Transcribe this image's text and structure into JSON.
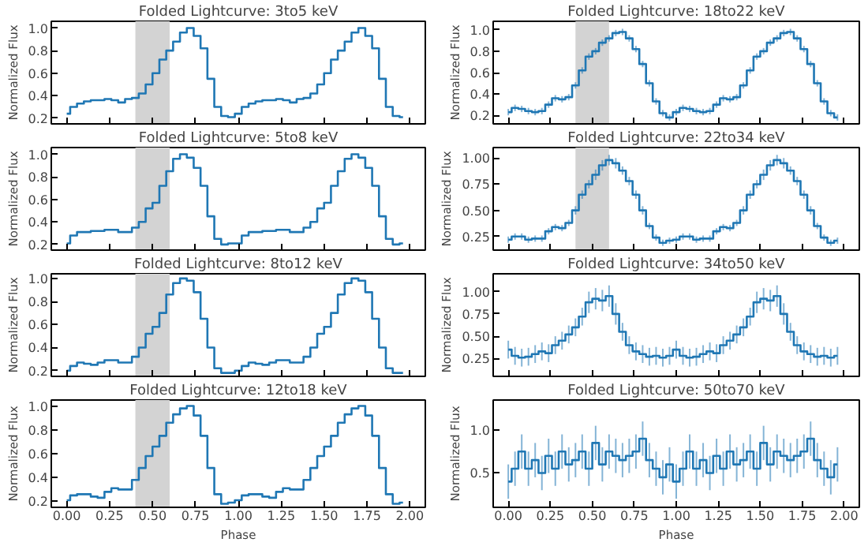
{
  "chart_data": [
    {
      "type": "step",
      "title": "Folded Lightcurve: 3to5 keV",
      "ylabel": "Normalized Flux",
      "xlim": [
        -0.09,
        2.09
      ],
      "xticks": [
        0.0,
        0.25,
        0.5,
        0.75,
        1.0,
        1.25,
        1.5,
        1.75,
        2.0
      ],
      "ylim": [
        0.15,
        1.06
      ],
      "yticks": [
        0.2,
        0.4,
        0.6,
        0.8,
        {
          "value": 1.0,
          "label": "1.0"
        }
      ],
      "tick_labels": "y",
      "x": [
        0,
        0.04,
        0.08,
        0.12,
        0.16,
        0.2,
        0.24,
        0.28,
        0.32,
        0.36,
        0.4,
        0.44,
        0.48,
        0.52,
        0.56,
        0.6,
        0.64,
        0.68,
        0.72,
        0.76,
        0.8,
        0.84,
        0.88,
        0.92,
        0.96,
        1.0,
        1.04,
        1.08,
        1.12,
        1.16,
        1.2,
        1.24,
        1.28,
        1.32,
        1.36,
        1.4,
        1.44,
        1.48,
        1.52,
        1.56,
        1.6,
        1.64,
        1.68,
        1.72,
        1.76,
        1.8,
        1.84,
        1.88,
        1.92,
        1.96
      ],
      "series": [
        {
          "color": "#1f77b4",
          "values": [
            0.24,
            0.3,
            0.33,
            0.35,
            0.36,
            0.36,
            0.37,
            0.36,
            0.34,
            0.37,
            0.38,
            0.42,
            0.5,
            0.6,
            0.72,
            0.8,
            0.88,
            0.96,
            1.0,
            0.93,
            0.82,
            0.55,
            0.3,
            0.22,
            0.21,
            0.24,
            0.3,
            0.33,
            0.35,
            0.36,
            0.36,
            0.37,
            0.36,
            0.34,
            0.37,
            0.38,
            0.42,
            0.5,
            0.6,
            0.72,
            0.8,
            0.88,
            0.96,
            1.0,
            0.93,
            0.82,
            0.55,
            0.3,
            0.22,
            0.21
          ]
        }
      ],
      "bands": [
        {
          "axis": "x",
          "from": 0.4,
          "to": 0.6,
          "color": "#d3d3d3"
        }
      ]
    },
    {
      "type": "step",
      "title": "Folded Lightcurve: 5to8 keV",
      "ylabel": "Normalized Flux",
      "xlim": [
        -0.09,
        2.09
      ],
      "xticks": [
        0.0,
        0.25,
        0.5,
        0.75,
        1.0,
        1.25,
        1.5,
        1.75,
        2.0
      ],
      "ylim": [
        0.15,
        1.06
      ],
      "yticks": [
        0.2,
        0.4,
        0.6,
        0.8,
        {
          "value": 1.0,
          "label": "1.0"
        }
      ],
      "tick_labels": "y",
      "x": [
        0,
        0.04,
        0.08,
        0.12,
        0.16,
        0.2,
        0.24,
        0.28,
        0.32,
        0.36,
        0.4,
        0.44,
        0.48,
        0.52,
        0.56,
        0.6,
        0.64,
        0.68,
        0.72,
        0.76,
        0.8,
        0.84,
        0.88,
        0.92,
        0.96,
        1.0,
        1.04,
        1.08,
        1.12,
        1.16,
        1.2,
        1.24,
        1.28,
        1.32,
        1.36,
        1.4,
        1.44,
        1.48,
        1.52,
        1.56,
        1.6,
        1.64,
        1.68,
        1.72,
        1.76,
        1.8,
        1.84,
        1.88,
        1.92,
        1.96
      ],
      "series": [
        {
          "color": "#1f77b4",
          "values": [
            0.21,
            0.28,
            0.31,
            0.31,
            0.32,
            0.32,
            0.33,
            0.33,
            0.31,
            0.31,
            0.35,
            0.4,
            0.52,
            0.57,
            0.72,
            0.85,
            0.96,
            1.0,
            0.97,
            0.88,
            0.72,
            0.45,
            0.25,
            0.2,
            0.21,
            0.21,
            0.28,
            0.31,
            0.31,
            0.32,
            0.32,
            0.33,
            0.33,
            0.31,
            0.31,
            0.35,
            0.4,
            0.52,
            0.57,
            0.72,
            0.85,
            0.96,
            1.0,
            0.97,
            0.88,
            0.72,
            0.45,
            0.25,
            0.2,
            0.21
          ]
        }
      ],
      "bands": [
        {
          "axis": "x",
          "from": 0.4,
          "to": 0.6,
          "color": "#d3d3d3"
        }
      ]
    },
    {
      "type": "step",
      "title": "Folded Lightcurve: 8to12 keV",
      "ylabel": "Normalized Flux",
      "xlim": [
        -0.09,
        2.09
      ],
      "xticks": [
        0.0,
        0.25,
        0.5,
        0.75,
        1.0,
        1.25,
        1.5,
        1.75,
        2.0
      ],
      "ylim": [
        0.15,
        1.04
      ],
      "yticks": [
        0.2,
        0.4,
        0.6,
        0.8,
        {
          "value": 1.0,
          "label": "1.0"
        }
      ],
      "tick_labels": "y",
      "x": [
        0,
        0.04,
        0.08,
        0.12,
        0.16,
        0.2,
        0.24,
        0.28,
        0.32,
        0.36,
        0.4,
        0.44,
        0.48,
        0.52,
        0.56,
        0.6,
        0.64,
        0.68,
        0.72,
        0.76,
        0.8,
        0.84,
        0.88,
        0.92,
        0.96,
        1.0,
        1.04,
        1.08,
        1.12,
        1.16,
        1.2,
        1.24,
        1.28,
        1.32,
        1.36,
        1.4,
        1.44,
        1.48,
        1.52,
        1.56,
        1.6,
        1.64,
        1.68,
        1.72,
        1.76,
        1.8,
        1.84,
        1.88,
        1.92,
        1.96
      ],
      "series": [
        {
          "color": "#1f77b4",
          "values": [
            0.2,
            0.24,
            0.27,
            0.26,
            0.25,
            0.27,
            0.29,
            0.29,
            0.27,
            0.27,
            0.32,
            0.4,
            0.52,
            0.58,
            0.7,
            0.86,
            0.96,
            1.0,
            0.98,
            0.88,
            0.65,
            0.4,
            0.22,
            0.18,
            0.18,
            0.2,
            0.24,
            0.27,
            0.26,
            0.25,
            0.27,
            0.29,
            0.29,
            0.27,
            0.27,
            0.32,
            0.4,
            0.52,
            0.58,
            0.7,
            0.86,
            0.96,
            1.0,
            0.98,
            0.88,
            0.65,
            0.4,
            0.22,
            0.18,
            0.18
          ]
        }
      ],
      "bands": [
        {
          "axis": "x",
          "from": 0.4,
          "to": 0.6,
          "color": "#d3d3d3"
        }
      ]
    },
    {
      "type": "step",
      "title": "Folded Lightcurve: 12to18 keV",
      "xlabel": "Phase",
      "ylabel": "Normalized Flux",
      "xlim": [
        -0.09,
        2.09
      ],
      "xticks": [
        {
          "value": 0.0,
          "label": "0.00"
        },
        {
          "value": 0.25,
          "label": "0.25"
        },
        {
          "value": 0.5,
          "label": "0.50"
        },
        {
          "value": 0.75,
          "label": "0.75"
        },
        {
          "value": 1.0,
          "label": "1.00"
        },
        {
          "value": 1.25,
          "label": "1.25"
        },
        {
          "value": 1.5,
          "label": "1.50"
        },
        {
          "value": 1.75,
          "label": "1.75"
        },
        {
          "value": 2.0,
          "label": "2.00"
        }
      ],
      "ylim": [
        0.15,
        1.05
      ],
      "yticks": [
        0.2,
        0.4,
        0.6,
        0.8,
        {
          "value": 1.0,
          "label": "1.0"
        }
      ],
      "x": [
        0,
        0.04,
        0.08,
        0.12,
        0.16,
        0.2,
        0.24,
        0.28,
        0.32,
        0.36,
        0.4,
        0.44,
        0.48,
        0.52,
        0.56,
        0.6,
        0.64,
        0.68,
        0.72,
        0.76,
        0.8,
        0.84,
        0.88,
        0.92,
        0.96,
        1.0,
        1.04,
        1.08,
        1.12,
        1.16,
        1.2,
        1.24,
        1.28,
        1.32,
        1.36,
        1.4,
        1.44,
        1.48,
        1.52,
        1.56,
        1.6,
        1.64,
        1.68,
        1.72,
        1.76,
        1.8,
        1.84,
        1.88,
        1.92,
        1.96
      ],
      "series": [
        {
          "color": "#1f77b4",
          "values": [
            0.21,
            0.25,
            0.26,
            0.26,
            0.24,
            0.23,
            0.28,
            0.31,
            0.3,
            0.3,
            0.38,
            0.48,
            0.58,
            0.66,
            0.75,
            0.86,
            0.93,
            0.98,
            1.0,
            0.92,
            0.75,
            0.48,
            0.26,
            0.18,
            0.19,
            0.21,
            0.25,
            0.26,
            0.26,
            0.24,
            0.23,
            0.28,
            0.31,
            0.3,
            0.3,
            0.38,
            0.48,
            0.58,
            0.66,
            0.75,
            0.86,
            0.93,
            0.98,
            1.0,
            0.92,
            0.75,
            0.48,
            0.26,
            0.18,
            0.19
          ]
        }
      ],
      "bands": [
        {
          "axis": "x",
          "from": 0.4,
          "to": 0.6,
          "color": "#d3d3d3"
        }
      ]
    },
    {
      "type": "step",
      "title": "Folded Lightcurve: 18to22 keV",
      "ylabel": "Normalized Flux",
      "xlim": [
        -0.09,
        2.09
      ],
      "xticks": [
        0.0,
        0.25,
        0.5,
        0.75,
        1.0,
        1.25,
        1.5,
        1.75,
        2.0
      ],
      "ylim": [
        0.12,
        1.08
      ],
      "yticks": [
        0.2,
        0.4,
        0.6,
        0.8,
        {
          "value": 1.0,
          "label": "1.0"
        }
      ],
      "tick_labels": "y",
      "x": [
        0,
        0.04,
        0.08,
        0.12,
        0.16,
        0.2,
        0.24,
        0.28,
        0.32,
        0.36,
        0.4,
        0.44,
        0.48,
        0.52,
        0.56,
        0.6,
        0.64,
        0.68,
        0.72,
        0.76,
        0.8,
        0.84,
        0.88,
        0.92,
        0.96,
        1.0,
        1.04,
        1.08,
        1.12,
        1.16,
        1.2,
        1.24,
        1.28,
        1.32,
        1.36,
        1.4,
        1.44,
        1.48,
        1.52,
        1.56,
        1.6,
        1.64,
        1.68,
        1.72,
        1.76,
        1.8,
        1.84,
        1.88,
        1.92,
        1.96
      ],
      "series": [
        {
          "color": "#1f77b4",
          "values": [
            0.23,
            0.27,
            0.26,
            0.24,
            0.23,
            0.24,
            0.3,
            0.36,
            0.35,
            0.37,
            0.48,
            0.62,
            0.75,
            0.8,
            0.88,
            0.92,
            0.97,
            0.98,
            0.92,
            0.82,
            0.68,
            0.5,
            0.33,
            0.22,
            0.18,
            0.23,
            0.27,
            0.26,
            0.24,
            0.23,
            0.24,
            0.3,
            0.36,
            0.35,
            0.37,
            0.48,
            0.62,
            0.75,
            0.8,
            0.88,
            0.92,
            0.97,
            0.98,
            0.92,
            0.82,
            0.68,
            0.5,
            0.33,
            0.22,
            0.18
          ],
          "errors": [
            0.03,
            0.03,
            0.03,
            0.03,
            0.03,
            0.03,
            0.03,
            0.03,
            0.03,
            0.03,
            0.03,
            0.03,
            0.03,
            0.03,
            0.03,
            0.03,
            0.03,
            0.03,
            0.03,
            0.03,
            0.03,
            0.03,
            0.03,
            0.03,
            0.03,
            0.03,
            0.03,
            0.03,
            0.03,
            0.03,
            0.03,
            0.03,
            0.03,
            0.03,
            0.03,
            0.03,
            0.03,
            0.03,
            0.03,
            0.03,
            0.03,
            0.03,
            0.03,
            0.03,
            0.03,
            0.03,
            0.03,
            0.03,
            0.03,
            0.03
          ]
        }
      ],
      "bands": [
        {
          "axis": "x",
          "from": 0.4,
          "to": 0.6,
          "color": "#d3d3d3"
        }
      ]
    },
    {
      "type": "step",
      "title": "Folded Lightcurve: 22to34 keV",
      "ylabel": "Normalized Flux",
      "xlim": [
        -0.09,
        2.09
      ],
      "xticks": [
        0.0,
        0.25,
        0.5,
        0.75,
        1.0,
        1.25,
        1.5,
        1.75,
        2.0
      ],
      "ylim": [
        0.12,
        1.1
      ],
      "yticks": [
        {
          "value": 0.25,
          "label": "0.25"
        },
        {
          "value": 0.5,
          "label": "0.50"
        },
        {
          "value": 0.75,
          "label": "0.75"
        },
        {
          "value": 1.0,
          "label": "1.00"
        }
      ],
      "tick_labels": "y",
      "x": [
        0,
        0.04,
        0.08,
        0.12,
        0.16,
        0.2,
        0.24,
        0.28,
        0.32,
        0.36,
        0.4,
        0.44,
        0.48,
        0.52,
        0.56,
        0.6,
        0.64,
        0.68,
        0.72,
        0.76,
        0.8,
        0.84,
        0.88,
        0.92,
        0.96,
        1.0,
        1.04,
        1.08,
        1.12,
        1.16,
        1.2,
        1.24,
        1.28,
        1.32,
        1.36,
        1.4,
        1.44,
        1.48,
        1.52,
        1.56,
        1.6,
        1.64,
        1.68,
        1.72,
        1.76,
        1.8,
        1.84,
        1.88,
        1.92,
        1.96
      ],
      "series": [
        {
          "color": "#1f77b4",
          "values": [
            0.22,
            0.25,
            0.25,
            0.22,
            0.23,
            0.23,
            0.3,
            0.34,
            0.33,
            0.38,
            0.5,
            0.65,
            0.75,
            0.84,
            0.93,
            0.98,
            0.95,
            0.88,
            0.78,
            0.65,
            0.5,
            0.35,
            0.24,
            0.19,
            0.21,
            0.22,
            0.25,
            0.25,
            0.22,
            0.23,
            0.23,
            0.3,
            0.34,
            0.33,
            0.38,
            0.5,
            0.65,
            0.75,
            0.84,
            0.93,
            0.98,
            0.95,
            0.88,
            0.78,
            0.65,
            0.5,
            0.35,
            0.24,
            0.19,
            0.21
          ],
          "errors": [
            0.03,
            0.03,
            0.03,
            0.03,
            0.03,
            0.03,
            0.03,
            0.03,
            0.03,
            0.03,
            0.04,
            0.04,
            0.04,
            0.05,
            0.05,
            0.05,
            0.05,
            0.04,
            0.04,
            0.04,
            0.04,
            0.03,
            0.03,
            0.03,
            0.03,
            0.03,
            0.03,
            0.03,
            0.03,
            0.03,
            0.03,
            0.03,
            0.03,
            0.03,
            0.03,
            0.04,
            0.04,
            0.04,
            0.05,
            0.05,
            0.05,
            0.05,
            0.04,
            0.04,
            0.04,
            0.04,
            0.03,
            0.03,
            0.03,
            0.03
          ]
        }
      ],
      "bands": [
        {
          "axis": "x",
          "from": 0.4,
          "to": 0.6,
          "color": "#d3d3d3"
        }
      ]
    },
    {
      "type": "step",
      "title": "Folded Lightcurve: 34to50 keV",
      "ylabel": "Normalized Flux",
      "xlim": [
        -0.09,
        2.09
      ],
      "xticks": [
        0.0,
        0.25,
        0.5,
        0.75,
        1.0,
        1.25,
        1.5,
        1.75,
        2.0
      ],
      "ylim": [
        0.05,
        1.2
      ],
      "yticks": [
        {
          "value": 0.25,
          "label": "0.25"
        },
        {
          "value": 0.5,
          "label": "0.50"
        },
        {
          "value": 0.75,
          "label": "0.75"
        },
        {
          "value": 1.0,
          "label": "1.00"
        }
      ],
      "tick_labels": "y",
      "x": [
        0,
        0.04,
        0.08,
        0.12,
        0.16,
        0.2,
        0.24,
        0.28,
        0.32,
        0.36,
        0.4,
        0.44,
        0.48,
        0.52,
        0.56,
        0.6,
        0.64,
        0.68,
        0.72,
        0.76,
        0.8,
        0.84,
        0.88,
        0.92,
        0.96,
        1.0,
        1.04,
        1.08,
        1.12,
        1.16,
        1.2,
        1.24,
        1.28,
        1.32,
        1.36,
        1.4,
        1.44,
        1.48,
        1.52,
        1.56,
        1.6,
        1.64,
        1.68,
        1.72,
        1.76,
        1.8,
        1.84,
        1.88,
        1.92,
        1.96
      ],
      "series": [
        {
          "color": "#1f77b4",
          "values": [
            0.35,
            0.28,
            0.26,
            0.27,
            0.3,
            0.33,
            0.31,
            0.4,
            0.45,
            0.52,
            0.6,
            0.72,
            0.88,
            0.92,
            0.9,
            0.95,
            0.75,
            0.55,
            0.4,
            0.33,
            0.3,
            0.27,
            0.28,
            0.26,
            0.28,
            0.35,
            0.28,
            0.26,
            0.27,
            0.3,
            0.33,
            0.31,
            0.4,
            0.45,
            0.52,
            0.6,
            0.72,
            0.88,
            0.92,
            0.9,
            0.95,
            0.75,
            0.55,
            0.4,
            0.33,
            0.3,
            0.27,
            0.28,
            0.26,
            0.28
          ],
          "errors": [
            0.1,
            0.1,
            0.1,
            0.1,
            0.1,
            0.1,
            0.1,
            0.1,
            0.1,
            0.1,
            0.1,
            0.1,
            0.12,
            0.12,
            0.12,
            0.12,
            0.12,
            0.1,
            0.1,
            0.1,
            0.1,
            0.1,
            0.1,
            0.1,
            0.1,
            0.1,
            0.1,
            0.1,
            0.1,
            0.1,
            0.1,
            0.1,
            0.1,
            0.1,
            0.1,
            0.1,
            0.1,
            0.12,
            0.12,
            0.12,
            0.12,
            0.12,
            0.1,
            0.1,
            0.1,
            0.1,
            0.1,
            0.1,
            0.1,
            0.1
          ]
        }
      ]
    },
    {
      "type": "step",
      "title": "Folded Lightcurve: 50to70 keV",
      "xlabel": "Phase",
      "ylabel": "Normalized Flux",
      "xlim": [
        -0.09,
        2.09
      ],
      "xticks": [
        {
          "value": 0.0,
          "label": "0.00"
        },
        {
          "value": 0.25,
          "label": "0.25"
        },
        {
          "value": 0.5,
          "label": "0.50"
        },
        {
          "value": 0.75,
          "label": "0.75"
        },
        {
          "value": 1.0,
          "label": "1.00"
        },
        {
          "value": 1.25,
          "label": "1.25"
        },
        {
          "value": 1.5,
          "label": "1.50"
        },
        {
          "value": 1.75,
          "label": "1.75"
        },
        {
          "value": 2.0,
          "label": "2.00"
        }
      ],
      "ylim": [
        0.1,
        1.35
      ],
      "yticks": [
        0.5,
        {
          "value": 1.0,
          "label": "1.0"
        }
      ],
      "x": [
        0,
        0.04,
        0.08,
        0.12,
        0.16,
        0.2,
        0.24,
        0.28,
        0.32,
        0.36,
        0.4,
        0.44,
        0.48,
        0.52,
        0.56,
        0.6,
        0.64,
        0.68,
        0.72,
        0.76,
        0.8,
        0.84,
        0.88,
        0.92,
        0.96,
        1.0,
        1.04,
        1.08,
        1.12,
        1.16,
        1.2,
        1.24,
        1.28,
        1.32,
        1.36,
        1.4,
        1.44,
        1.48,
        1.52,
        1.56,
        1.6,
        1.64,
        1.68,
        1.72,
        1.76,
        1.8,
        1.84,
        1.88,
        1.92,
        1.96
      ],
      "series": [
        {
          "color": "#1f77b4",
          "values": [
            0.4,
            0.55,
            0.75,
            0.55,
            0.65,
            0.5,
            0.7,
            0.55,
            0.75,
            0.6,
            0.65,
            0.75,
            0.55,
            0.85,
            0.6,
            0.75,
            0.7,
            0.65,
            0.7,
            0.75,
            0.9,
            0.65,
            0.55,
            0.45,
            0.6,
            0.4,
            0.55,
            0.75,
            0.55,
            0.65,
            0.5,
            0.7,
            0.55,
            0.75,
            0.6,
            0.65,
            0.75,
            0.55,
            0.85,
            0.6,
            0.75,
            0.7,
            0.65,
            0.7,
            0.75,
            0.9,
            0.65,
            0.55,
            0.45,
            0.6
          ],
          "errors": [
            0.2,
            0.2,
            0.2,
            0.2,
            0.2,
            0.2,
            0.2,
            0.2,
            0.2,
            0.2,
            0.2,
            0.2,
            0.2,
            0.2,
            0.2,
            0.2,
            0.2,
            0.2,
            0.2,
            0.2,
            0.2,
            0.2,
            0.2,
            0.2,
            0.2,
            0.2,
            0.2,
            0.2,
            0.2,
            0.2,
            0.2,
            0.2,
            0.2,
            0.2,
            0.2,
            0.2,
            0.2,
            0.2,
            0.2,
            0.2,
            0.2,
            0.2,
            0.2,
            0.2,
            0.2,
            0.2,
            0.2,
            0.2,
            0.2,
            0.2
          ]
        }
      ]
    }
  ]
}
